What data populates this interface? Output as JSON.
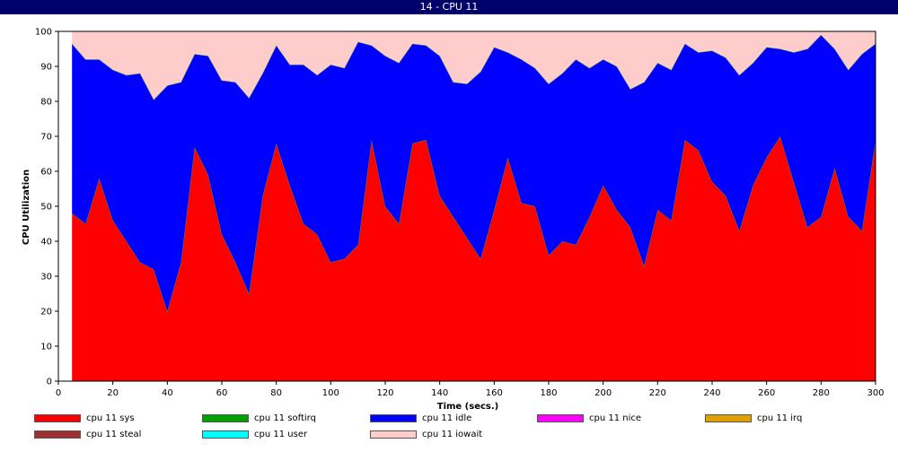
{
  "window": {
    "title": "14 - CPU 11"
  },
  "chart_data": {
    "type": "area",
    "stacked": true,
    "xlabel": "Time (secs.)",
    "ylabel": "CPU Utilization",
    "xlim": [
      0,
      300
    ],
    "ylim": [
      0,
      100
    ],
    "xticks": [
      0,
      20,
      40,
      60,
      80,
      100,
      120,
      140,
      160,
      180,
      200,
      220,
      240,
      260,
      280,
      300
    ],
    "yticks": [
      0,
      10,
      20,
      30,
      40,
      50,
      60,
      70,
      80,
      90,
      100
    ],
    "grid": false,
    "legend_position": "bottom",
    "x": [
      5,
      10,
      15,
      20,
      25,
      30,
      35,
      40,
      45,
      50,
      55,
      60,
      65,
      70,
      75,
      80,
      85,
      90,
      95,
      100,
      105,
      110,
      115,
      120,
      125,
      130,
      135,
      140,
      145,
      150,
      155,
      160,
      165,
      170,
      175,
      180,
      185,
      190,
      195,
      200,
      205,
      210,
      215,
      220,
      225,
      230,
      235,
      240,
      245,
      250,
      255,
      260,
      265,
      270,
      275,
      280,
      285,
      290,
      295,
      300
    ],
    "series": [
      {
        "name": "cpu 11 sys",
        "color": "#ff0000",
        "values": [
          48,
          45,
          58,
          46,
          40,
          34,
          32,
          20,
          34,
          67,
          59,
          42,
          34,
          25,
          53,
          68,
          56,
          45,
          42,
          34,
          35,
          39,
          69,
          50,
          45,
          68,
          69,
          53,
          47,
          41,
          35,
          49,
          64,
          51,
          50,
          36,
          40,
          39,
          47,
          56,
          49,
          44,
          33,
          49,
          46,
          69,
          66,
          57,
          53,
          43,
          56,
          64,
          70,
          57,
          44,
          47,
          61,
          47,
          43,
          69
        ]
      },
      {
        "name": "cpu 11 softirq",
        "color": "#00a000",
        "values": [
          0,
          0,
          0,
          0,
          0,
          0,
          0,
          0,
          0,
          0,
          0,
          0,
          0,
          0,
          0,
          0,
          0,
          0,
          0,
          0,
          0,
          0,
          0,
          0,
          0,
          0,
          0,
          0,
          0,
          0,
          0,
          0,
          0,
          0,
          0,
          0,
          0,
          0,
          0,
          0,
          0,
          0,
          0,
          0,
          0,
          0,
          0,
          0,
          0,
          0,
          0,
          0,
          0,
          0,
          0,
          0,
          0,
          0,
          0,
          0
        ]
      },
      {
        "name": "cpu 11 idle",
        "color": "#0000ff",
        "values": [
          48.5,
          47,
          34,
          43,
          47.5,
          54,
          48.5,
          64.5,
          51.5,
          26.5,
          34,
          44,
          51.5,
          56,
          35,
          28,
          34.5,
          45.5,
          45.5,
          56.5,
          54.5,
          58,
          27,
          43,
          46,
          28.5,
          27,
          40,
          38.5,
          44,
          53.5,
          46.5,
          30,
          41,
          39.5,
          49,
          48,
          53,
          42.5,
          36,
          41,
          39.5,
          52.5,
          42,
          43,
          27.5,
          28,
          37.5,
          39.5,
          44.5,
          35,
          31.5,
          25,
          37,
          51,
          52,
          34,
          42,
          50.5,
          27.5
        ]
      },
      {
        "name": "cpu 11 nice",
        "color": "#ff00ff",
        "values": [
          0,
          0,
          0,
          0,
          0,
          0,
          0,
          0,
          0,
          0,
          0,
          0,
          0,
          0,
          0,
          0,
          0,
          0,
          0,
          0,
          0,
          0,
          0,
          0,
          0,
          0,
          0,
          0,
          0,
          0,
          0,
          0,
          0,
          0,
          0,
          0,
          0,
          0,
          0,
          0,
          0,
          0,
          0,
          0,
          0,
          0,
          0,
          0,
          0,
          0,
          0,
          0,
          0,
          0,
          0,
          0,
          0,
          0,
          0,
          0
        ]
      },
      {
        "name": "cpu 11 irq",
        "color": "#e0a000",
        "values": [
          0,
          0,
          0,
          0,
          0,
          0,
          0,
          0,
          0,
          0,
          0,
          0,
          0,
          0,
          0,
          0,
          0,
          0,
          0,
          0,
          0,
          0,
          0,
          0,
          0,
          0,
          0,
          0,
          0,
          0,
          0,
          0,
          0,
          0,
          0,
          0,
          0,
          0,
          0,
          0,
          0,
          0,
          0,
          0,
          0,
          0,
          0,
          0,
          0,
          0,
          0,
          0,
          0,
          0,
          0,
          0,
          0,
          0,
          0,
          0
        ]
      },
      {
        "name": "cpu 11 steal",
        "color": "#a03030",
        "values": [
          0,
          0,
          0,
          0,
          0,
          0,
          0,
          0,
          0,
          0,
          0,
          0,
          0,
          0,
          0,
          0,
          0,
          0,
          0,
          0,
          0,
          0,
          0,
          0,
          0,
          0,
          0,
          0,
          0,
          0,
          0,
          0,
          0,
          0,
          0,
          0,
          0,
          0,
          0,
          0,
          0,
          0,
          0,
          0,
          0,
          0,
          0,
          0,
          0,
          0,
          0,
          0,
          0,
          0,
          0,
          0,
          0,
          0,
          0,
          0
        ]
      },
      {
        "name": "cpu 11 user",
        "color": "#00ffff",
        "values": [
          0,
          0,
          0,
          0,
          0,
          0,
          0,
          0,
          0,
          0,
          0,
          0,
          0,
          0,
          0,
          0,
          0,
          0,
          0,
          0,
          0,
          0,
          0,
          0,
          0,
          0,
          0,
          0,
          0,
          0,
          0,
          0,
          0,
          0,
          0,
          0,
          0,
          0,
          0,
          0,
          0,
          0,
          0,
          0,
          0,
          0,
          0,
          0,
          0,
          0,
          0,
          0,
          0,
          0,
          0,
          0,
          0,
          0,
          0,
          0
        ]
      },
      {
        "name": "cpu 11 iowait",
        "color": "#ffcccc",
        "values": [
          3.5,
          8,
          8,
          11,
          12.5,
          12,
          19.5,
          15.5,
          14.5,
          6.5,
          7,
          14,
          14.5,
          19,
          12,
          4,
          9.5,
          9.5,
          12.5,
          9.5,
          10.5,
          3,
          4,
          7,
          9,
          3.5,
          4,
          7,
          14.5,
          15,
          11.5,
          4.5,
          6,
          8,
          10.5,
          15,
          12,
          8,
          10.5,
          8,
          10,
          16.5,
          14.5,
          9,
          11,
          3.5,
          6,
          5.5,
          7.5,
          12.5,
          9,
          4.5,
          5,
          6,
          5,
          1,
          5,
          11,
          6.5,
          3.5
        ]
      }
    ]
  }
}
